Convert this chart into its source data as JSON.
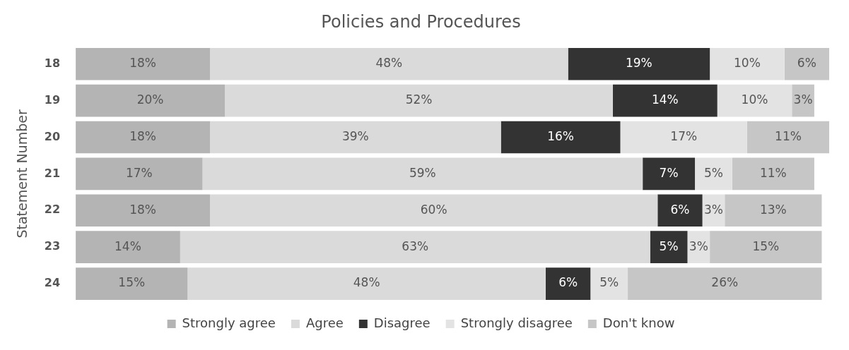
{
  "chart_data": {
    "type": "bar",
    "orientation": "horizontal",
    "stacked": true,
    "title": "Policies and Procedures",
    "ylabel": "Statement Number",
    "categories": [
      "18",
      "19",
      "20",
      "21",
      "22",
      "23",
      "24"
    ],
    "series": [
      {
        "name": "Strongly agree",
        "color": "#b4b4b4",
        "values": [
          18,
          20,
          18,
          17,
          18,
          14,
          15
        ],
        "value_labels": [
          "18%",
          "20%",
          "18%",
          "17%",
          "18%",
          "14%",
          "15%"
        ]
      },
      {
        "name": "Agree",
        "color": "#dadada",
        "values": [
          48,
          52,
          39,
          59,
          60,
          63,
          48
        ],
        "value_labels": [
          "48%",
          "52%",
          "39%",
          "59%",
          "60%",
          "63%",
          "48%"
        ]
      },
      {
        "name": "Disagree",
        "color": "#333333",
        "values": [
          19,
          14,
          16,
          7,
          6,
          5,
          6
        ],
        "value_labels": [
          "19%",
          "14%",
          "16%",
          "7%",
          "6%",
          "5%",
          "6%"
        ]
      },
      {
        "name": "Strongly disagree",
        "color": "#e3e3e3",
        "values": [
          10,
          10,
          17,
          5,
          3,
          3,
          5
        ],
        "value_labels": [
          "10%",
          "10%",
          "17%",
          "5%",
          "3%",
          "3%",
          "5%"
        ]
      },
      {
        "name": "Don't know",
        "color": "#c6c6c6",
        "values": [
          6,
          3,
          11,
          11,
          13,
          15,
          26
        ],
        "value_labels": [
          "6%",
          "3%",
          "11%",
          "11%",
          "13%",
          "15%",
          "26%"
        ]
      }
    ],
    "tick_labels": "y",
    "legend": "bottom"
  }
}
